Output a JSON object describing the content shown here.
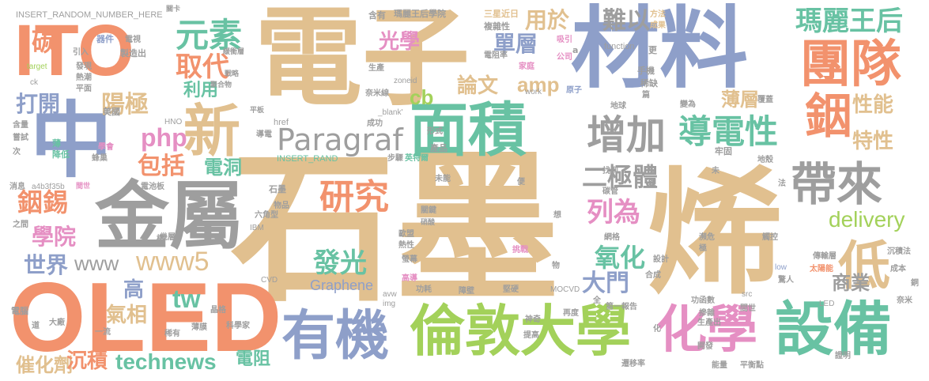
{
  "colors": {
    "orange": "#f2926d",
    "tan": "#e1c08f",
    "blue": "#8e9fc9",
    "green": "#a3d15a",
    "gray": "#9e9e9e",
    "pink": "#e58fc3",
    "teal": "#68c2a3",
    "yellow": "#f2d64a"
  },
  "words": {
    "graphene_big_1": "石墨",
    "graphene_big_2": "烯",
    "electron": "電子",
    "material": "材料",
    "oled": "OLED",
    "ito": "ITO",
    "zhong": "中",
    "metal": "金屬",
    "area": "面積",
    "equipment": "設備",
    "chemistry": "化學",
    "london_univ": "倫敦大學",
    "organic": "有機",
    "team": "團隊",
    "indium": "銦",
    "new": "新",
    "bring": "帶來",
    "increase": "增加",
    "conductivity": "導電性",
    "paragraf": "Paragraf",
    "low": "低",
    "research": "研究",
    "element": "元素",
    "queen_mary": "瑪麗王后",
    "replace": "取代",
    "carbon": "碳",
    "php": "php",
    "optics": "光學",
    "single_layer": "單層",
    "used_for": "用於",
    "difficult": "難以",
    "thin_layer": "薄層",
    "property": "性能",
    "characteristic": "特性",
    "diode": "二極體",
    "listed_as": "列為",
    "delivery": "delivery",
    "oxide": "氧化",
    "gate": "大門",
    "commercial": "商業",
    "luminescence": "發光",
    "tw": "tw",
    "www": "www",
    "www5": "www5",
    "technews": "technews",
    "resistor": "電阻",
    "catalyst": "催化劑",
    "deposition": "沉積",
    "gas_phase": "氣相",
    "high": "高",
    "world": "世界",
    "college": "學院",
    "indium_tin": "銦錫",
    "include": "包括",
    "open": "打開",
    "anode": "陽極",
    "utilize": "利用",
    "hole": "電洞",
    "paper": "論文",
    "amp": "amp",
    "cb": "cb",
    "graphene_en": "Graphene",
    "insert_random_1": "INSERT_RANDOM_NUMBER_HERE",
    "insert_random_2": "INSERT_RAND",
    "contains": "含有",
    "queen_mary_college": "瑪麗王后學院",
    "samsung": "三星",
    "recent": "近日",
    "complex": "複雜性",
    "attract": "吸引",
    "method": "方法",
    "result": "成果",
    "function": "function",
    "more": "更",
    "key": "關卡",
    "device": "器件",
    "tv": "電視",
    "manufacture": "製造出",
    "buffer_layer": "緩衝層",
    "strategy": "戰略",
    "polymer": "聚合物",
    "target": "target",
    "hot_trend": "熱潮",
    "discover": "發現",
    "flat": "平面",
    "resistivity": "電阻率",
    "a_letter": "a",
    "family": "家庭",
    "company": "公司",
    "produce": "生產",
    "mobile": "手機",
    "scarce": "稀缺",
    "work": "work",
    "atom": "原子",
    "earth": "地球",
    "become": "變為",
    "cover": "覆蓋",
    "usa": "美國",
    "tablet": "平板",
    "nanowire": "奈米線",
    "zoneid": "zoneid",
    "piece": "篇",
    "hno": "HNO",
    "success": "成功",
    "content": "含量",
    "try": "嘗試",
    "next": "次",
    "thin": "薄",
    "reduce": "降低",
    "learn": "學會",
    "honeycomb": "蜂巢",
    "href": "href",
    "blank": "_blank'",
    "form": "形式",
    "conduct": "導電",
    "step": "步驟",
    "englishgraph": "英特爾",
    "product": "產品",
    "find": "找到",
    "carbon_tube": "碳管",
    "solid": "牢固",
    "crust": "地殼",
    "news": "消息",
    "hex_id": "a4b3f35b",
    "battery": "電池板",
    "unable": "未能",
    "convenient": "便",
    "pass": "未",
    "silver": "銀",
    "first": "先",
    "law": "法",
    "stone": "石墨",
    "goods": "物品",
    "hexagon": "六角型",
    "ibm": "IBM",
    "to": "之間",
    "multi_layer": "幾層",
    "key_point": "關鍵",
    "want": "想",
    "grid": "網格",
    "crisis": "瀕危",
    "control": "觸控",
    "europe": "歐盟",
    "sulfuric": "硝酸",
    "heat": "熱性",
    "screen": "螢幕",
    "challenge": "挑戰",
    "design": "設計",
    "extreme": "極",
    "object": "物",
    "transmit": "傳輸層",
    "solar": "太陽能",
    "sink_method": "沉積法",
    "cheap": "成本",
    "cvd": "CVD",
    "graphene_small": "Graphene",
    "low_en": "low",
    "amazing": "驚人",
    "copper": "銅",
    "high_cond": "高導",
    "power_use": "功耗",
    "barrier": "障壁",
    "hardness": "堅硬",
    "mocvd": "MOCVD",
    "synthesis": "合成",
    "src": "src",
    "full": "全",
    "first_report": "第一報告",
    "work_function": "功函數",
    "nano": "奈米",
    "computer": "電腦",
    "crystal": "晶格",
    "avw": "avw",
    "img": "img",
    "magic": "神奇",
    "again": "再度",
    "doping": "摻雜",
    "produce2": "生產出",
    "led": "LED",
    "between": "間世",
    "road": "道",
    "big_factory": "大廠",
    "thin_film": "薄膜",
    "scientist": "科學家",
    "rare": "稀有",
    "first_class": "一流",
    "improve": "提高",
    "bridge": "橋",
    "mobility": "遷移率",
    "energy": "能量",
    "balance": "平衡點",
    "open_dev": "開發",
    "prove": "證明",
    "transform": "化",
    "ck": "ck",
    "join": "引入"
  }
}
